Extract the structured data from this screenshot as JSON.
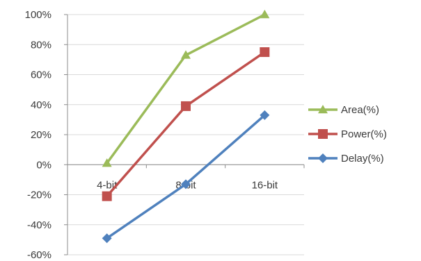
{
  "chart_data": {
    "type": "line",
    "categories": [
      "4-bit",
      "8-bit",
      "16-bit"
    ],
    "ylim": [
      -60,
      100
    ],
    "yticks": [
      100,
      80,
      60,
      40,
      20,
      0,
      -20,
      -40,
      -60
    ],
    "ytick_labels": [
      "100%",
      "80%",
      "60%",
      "40%",
      "20%",
      "0%",
      "-20%",
      "-40%",
      "-60%"
    ],
    "grid": true,
    "legend_position": "right",
    "series": [
      {
        "name": "Area(%)",
        "values": [
          1,
          73,
          100
        ],
        "color": "#9bbb59",
        "marker": "triangle"
      },
      {
        "name": "Power(%)",
        "values": [
          -21,
          39,
          75
        ],
        "color": "#c0504d",
        "marker": "square"
      },
      {
        "name": "Delay(%)",
        "values": [
          -49,
          -13,
          33
        ],
        "color": "#4f81bd",
        "marker": "diamond"
      }
    ]
  }
}
